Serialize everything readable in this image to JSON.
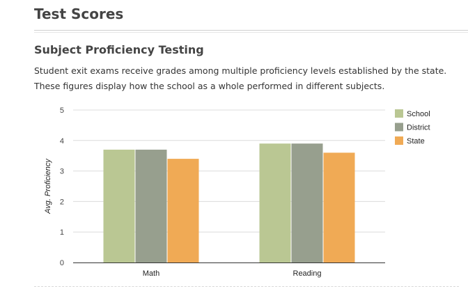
{
  "header": {
    "title": "Test Scores"
  },
  "section": {
    "heading": "Subject Proficiency Testing",
    "description_lines": [
      "Student exit exams receive grades among multiple proficiency levels established by the state.",
      "These figures display how the school as a whole performed in different subjects."
    ]
  },
  "chart_data": {
    "type": "bar",
    "categories": [
      "Math",
      "Reading"
    ],
    "series": [
      {
        "name": "School",
        "values": [
          3.7,
          3.9
        ],
        "color": "#bac793"
      },
      {
        "name": "District",
        "values": [
          3.7,
          3.9
        ],
        "color": "#979f8e"
      },
      {
        "name": "State",
        "values": [
          3.4,
          3.6
        ],
        "color": "#f0aa55"
      }
    ],
    "xlabel": "",
    "ylabel": "Avg. Proficiency",
    "ylim": [
      0,
      5
    ],
    "yticks": [
      "0",
      "1",
      "2",
      "3",
      "4",
      "5"
    ],
    "grid": true,
    "legend": "top-right"
  }
}
